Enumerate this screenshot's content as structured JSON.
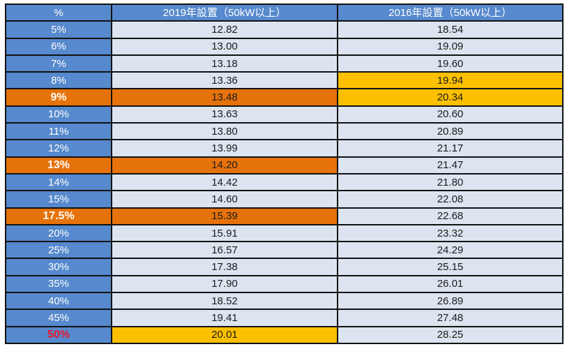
{
  "colors": {
    "header_bg": "#5689cd",
    "header_text": "#ffffff",
    "row_bg": "#dce4f0",
    "value_text": "#1b1b1b",
    "highlight_orange": "#e6720b",
    "highlight_gold": "#fdc000",
    "red_text": "#e8192c",
    "border": "#121212"
  },
  "chart_data": {
    "type": "table",
    "columns": [
      "%",
      "2019年設置（50kW以上）",
      "2016年設置（50kW以上）"
    ],
    "rows": [
      {
        "pct": "5%",
        "y2019": "12.82",
        "y2016": "18.54",
        "pct_hl": "none",
        "hl2019": "none",
        "hl2016": "none"
      },
      {
        "pct": "6%",
        "y2019": "13.00",
        "y2016": "19.09",
        "pct_hl": "none",
        "hl2019": "none",
        "hl2016": "none"
      },
      {
        "pct": "7%",
        "y2019": "13.18",
        "y2016": "19.60",
        "pct_hl": "none",
        "hl2019": "none",
        "hl2016": "none"
      },
      {
        "pct": "8%",
        "y2019": "13.36",
        "y2016": "19.94",
        "pct_hl": "none",
        "hl2019": "none",
        "hl2016": "gold"
      },
      {
        "pct": "9%",
        "y2019": "13.48",
        "y2016": "20.34",
        "pct_hl": "orange",
        "hl2019": "orange",
        "hl2016": "gold"
      },
      {
        "pct": "10%",
        "y2019": "13.63",
        "y2016": "20.60",
        "pct_hl": "none",
        "hl2019": "none",
        "hl2016": "none"
      },
      {
        "pct": "11%",
        "y2019": "13.80",
        "y2016": "20.89",
        "pct_hl": "none",
        "hl2019": "none",
        "hl2016": "none"
      },
      {
        "pct": "12%",
        "y2019": "13.99",
        "y2016": "21.17",
        "pct_hl": "none",
        "hl2019": "none",
        "hl2016": "none"
      },
      {
        "pct": "13%",
        "y2019": "14.20",
        "y2016": "21.47",
        "pct_hl": "orange",
        "hl2019": "orange",
        "hl2016": "none"
      },
      {
        "pct": "14%",
        "y2019": "14.42",
        "y2016": "21.80",
        "pct_hl": "none",
        "hl2019": "none",
        "hl2016": "none"
      },
      {
        "pct": "15%",
        "y2019": "14.60",
        "y2016": "22.08",
        "pct_hl": "none",
        "hl2019": "none",
        "hl2016": "none"
      },
      {
        "pct": "17.5%",
        "y2019": "15.39",
        "y2016": "22.68",
        "pct_hl": "orange",
        "hl2019": "orange",
        "hl2016": "none"
      },
      {
        "pct": "20%",
        "y2019": "15.91",
        "y2016": "23.32",
        "pct_hl": "none",
        "hl2019": "none",
        "hl2016": "none"
      },
      {
        "pct": "25%",
        "y2019": "16.57",
        "y2016": "24.29",
        "pct_hl": "none",
        "hl2019": "none",
        "hl2016": "none"
      },
      {
        "pct": "30%",
        "y2019": "17.38",
        "y2016": "25.15",
        "pct_hl": "none",
        "hl2019": "none",
        "hl2016": "none"
      },
      {
        "pct": "35%",
        "y2019": "17.90",
        "y2016": "26.01",
        "pct_hl": "none",
        "hl2019": "none",
        "hl2016": "none"
      },
      {
        "pct": "40%",
        "y2019": "18.52",
        "y2016": "26.89",
        "pct_hl": "none",
        "hl2019": "none",
        "hl2016": "none"
      },
      {
        "pct": "45%",
        "y2019": "19.41",
        "y2016": "27.48",
        "pct_hl": "none",
        "hl2019": "none",
        "hl2016": "none"
      },
      {
        "pct": "50%",
        "y2019": "20.01",
        "y2016": "28.25",
        "pct_hl": "red",
        "hl2019": "gold",
        "hl2016": "none"
      }
    ]
  }
}
